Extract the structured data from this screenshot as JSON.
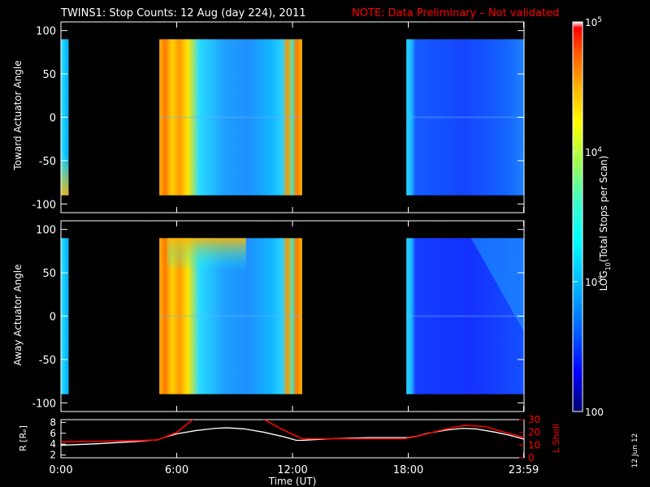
{
  "title": "TWINS1: Stop Counts: 12 Aug (day 224), 2011",
  "note": "NOTE: Data Preliminary – Not validated",
  "date_stamp": "12 Jun 12",
  "colors": {
    "background": "#000000",
    "axes": "#ffffff",
    "note": "#ff0000",
    "r_line": "#ffffff",
    "lshell_line": "#ff0000"
  },
  "chart_data": [
    {
      "type": "heatmap",
      "name": "toward-panel",
      "ylabel": "Toward Actuator Angle",
      "ylim": [
        -110,
        110
      ],
      "yticks": [
        100,
        50,
        0,
        -50,
        -100
      ],
      "y_tick_labels": [
        "100",
        "50",
        "0",
        "-50",
        "-100"
      ],
      "xlim_hours": [
        0,
        24
      ],
      "segments": [
        {
          "start_hour": 0.0,
          "end_hour": 0.4,
          "angle_range": [
            -90,
            90
          ],
          "level": "high"
        },
        {
          "start_hour": 5.1,
          "end_hour": 12.5,
          "angle_range": [
            -90,
            90
          ],
          "level": "high-to-mid"
        },
        {
          "start_hour": 17.9,
          "end_hour": 24.0,
          "angle_range": [
            -90,
            90
          ],
          "level": "low"
        }
      ]
    },
    {
      "type": "heatmap",
      "name": "away-panel",
      "ylabel": "Away Actuator Angle",
      "ylim": [
        -110,
        110
      ],
      "yticks": [
        100,
        50,
        0,
        -50,
        -100
      ],
      "y_tick_labels": [
        "100",
        "50",
        "0",
        "-50",
        "-100"
      ],
      "xlim_hours": [
        0,
        24
      ],
      "segments": [
        {
          "start_hour": 0.0,
          "end_hour": 0.4,
          "angle_range": [
            -90,
            90
          ],
          "level": "high"
        },
        {
          "start_hour": 5.1,
          "end_hour": 12.5,
          "angle_range": [
            -90,
            90
          ],
          "level": "high-to-mid"
        },
        {
          "start_hour": 17.9,
          "end_hour": 24.0,
          "angle_range": [
            -90,
            90
          ],
          "level": "low"
        }
      ]
    },
    {
      "type": "line",
      "name": "orbit-panel",
      "ylabel_left": "R [Rₑ]",
      "ylabel_right": "L Shell",
      "xlabel": "Time (UT)",
      "x_tick_labels": [
        "0:00",
        "6:00",
        "12:00",
        "18:00",
        "23:59"
      ],
      "x_tick_hours": [
        0,
        6,
        12,
        18,
        23.98
      ],
      "ylim_left": [
        1.5,
        8.5
      ],
      "yticks_left": [
        2,
        4,
        6,
        8
      ],
      "y_tick_labels_left": [
        "2",
        "4",
        "6",
        "8"
      ],
      "ylim_right": [
        0,
        30
      ],
      "yticks_right": [
        0,
        10,
        20,
        30
      ],
      "y_tick_labels_right": [
        "0",
        "10",
        "20",
        "30"
      ],
      "series": [
        {
          "key": "r",
          "hours": [
            0,
            1,
            2,
            3,
            4,
            5,
            5.4,
            6,
            7,
            8,
            8.6,
            9.5,
            10.5,
            11.5,
            12.2,
            12.5,
            13,
            14,
            15,
            16,
            17,
            18,
            18.5,
            19,
            20,
            20.8,
            21.5,
            22.5,
            23.3,
            24
          ],
          "values": [
            3.8,
            3.95,
            4.1,
            4.3,
            4.5,
            4.8,
            5.3,
            5.9,
            6.5,
            6.9,
            7.0,
            6.8,
            6.2,
            5.4,
            4.7,
            4.7,
            4.8,
            5.0,
            5.1,
            5.2,
            5.2,
            5.2,
            5.5,
            6.0,
            6.6,
            6.9,
            6.8,
            6.2,
            5.6,
            4.9
          ]
        },
        {
          "key": "lshell",
          "hours": [
            0,
            2,
            4,
            5.0,
            6.0,
            7.0,
            10.3,
            11.5,
            12.5,
            15,
            17.8,
            18.5,
            19.5,
            20.5,
            21.0,
            22,
            23,
            24
          ],
          "values": [
            12.5,
            13.0,
            13.5,
            14.0,
            20.0,
            32.0,
            32.0,
            22.0,
            15.0,
            15.0,
            15.0,
            17.0,
            21.0,
            24.5,
            25.5,
            24.5,
            20.0,
            16.0
          ]
        }
      ]
    }
  ],
  "colorbar": {
    "label": "LOG10(Total Stops per Scan)",
    "label_parts": [
      "LOG",
      "10",
      "(Total Stops per Scan)"
    ],
    "ticks": [
      {
        "text": "10",
        "sup": "5",
        "value": 5
      },
      {
        "text": "10",
        "sup": "4",
        "value": 4
      },
      {
        "text": "10",
        "sup": "3",
        "value": 3
      },
      {
        "text": "100",
        "sup": "",
        "value": 2
      }
    ],
    "range_log": [
      2,
      5
    ],
    "colormap": [
      "#00006e",
      "#0000ff",
      "#005aff",
      "#00b4ff",
      "#00ffff",
      "#3cffc8",
      "#a0ff50",
      "#ffff00",
      "#ffb400",
      "#ff5a00",
      "#ff0000",
      "#ffffff"
    ]
  }
}
